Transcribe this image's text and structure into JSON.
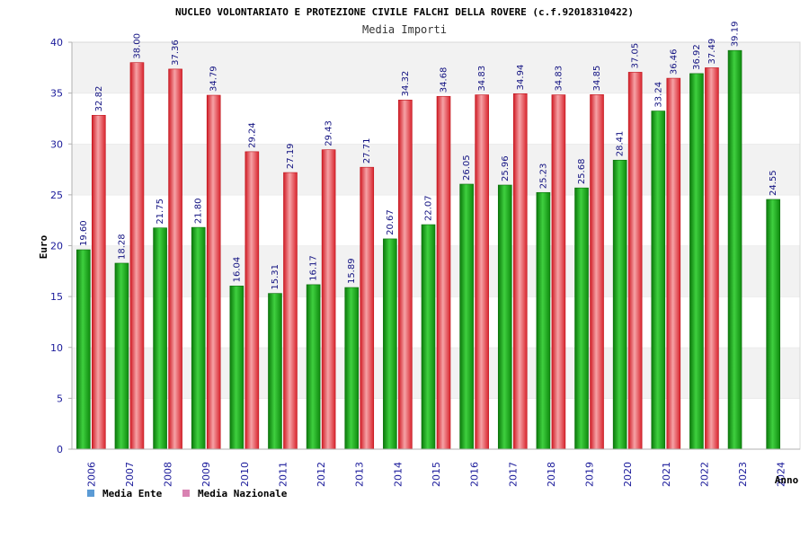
{
  "chart_data": {
    "type": "bar",
    "title": "NUCLEO VOLONTARIATO E PROTEZIONE CIVILE FALCHI DELLA ROVERE (c.f.92018310422)",
    "subtitle": "Media Importi",
    "ylabel": "Euro",
    "xlabel": "Anno",
    "ylim": [
      0,
      40
    ],
    "yticks": [
      0,
      5,
      10,
      15,
      20,
      25,
      30,
      35,
      40
    ],
    "grid": "alternating horizontal bands",
    "legend_position": "bottom-left",
    "categories": [
      "2006",
      "2007",
      "2008",
      "2009",
      "2010",
      "2011",
      "2012",
      "2013",
      "2014",
      "2015",
      "2016",
      "2017",
      "2018",
      "2019",
      "2020",
      "2021",
      "2022",
      "2023",
      "2024"
    ],
    "series": [
      {
        "name": "Media Ente",
        "color": "#1fa81f",
        "legend_color": "#5b9bd5",
        "values": [
          19.6,
          18.28,
          21.75,
          21.8,
          16.04,
          15.31,
          16.17,
          15.89,
          20.67,
          22.07,
          26.05,
          25.96,
          25.23,
          25.68,
          28.41,
          33.24,
          36.92,
          39.19,
          24.55
        ],
        "labels": [
          "19.60",
          "18.28",
          "21.75",
          "21.80",
          "16.04",
          "15.31",
          "16.17",
          "15.89",
          "20.67",
          "22.07",
          "26.05",
          "25.96",
          "25.23",
          "25.68",
          "28.41",
          "33.24",
          "36.92",
          "39.19",
          "24.55"
        ]
      },
      {
        "name": "Media Nazionale",
        "color": "#e8323a",
        "legend_color": "#d982b2",
        "values": [
          32.82,
          38.0,
          37.36,
          34.79,
          29.24,
          27.19,
          29.43,
          27.71,
          34.32,
          34.68,
          34.83,
          34.94,
          34.83,
          34.85,
          37.05,
          36.46,
          37.49,
          null,
          null
        ],
        "labels": [
          "32.82",
          "38.00",
          "37.36",
          "34.79",
          "29.24",
          "27.19",
          "29.43",
          "27.71",
          "34.32",
          "34.68",
          "34.83",
          "34.94",
          "34.83",
          "34.85",
          "37.05",
          "36.46",
          "37.49",
          null,
          null
        ]
      }
    ]
  }
}
